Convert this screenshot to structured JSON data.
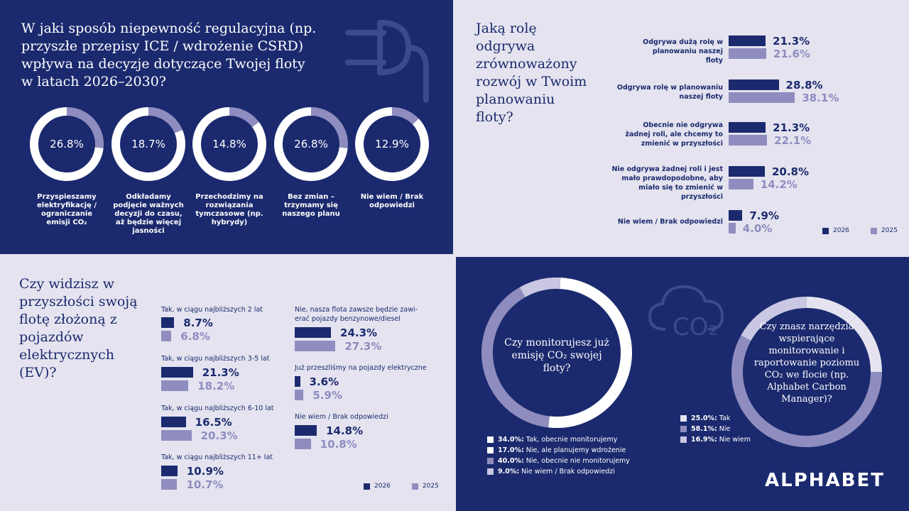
{
  "panel1": {
    "title": "W jaki sposób niepewność regulacyjna (np. przyszłe przepisy ICE / wdrożenie CSRD) wpływa na decyzje dotyczące Twojej floty w latach 2026–2030?",
    "icon": "plug-icon",
    "colors": {
      "ring": "#ffffff",
      "ring_rest": "#8f8dbf",
      "bg": "#1b2a6e"
    }
  },
  "panel2": {
    "title": "Jaką rolę odgrywa zrównoważony rozwój w Twoim planowaniu floty?",
    "legend": [
      "2026",
      "2025"
    ]
  },
  "panel3": {
    "title": "Czy widzisz w przyszłości swoją flotę złożoną z pojazdów elektrycznych (EV)?",
    "legend": [
      "2026",
      "2025"
    ]
  },
  "panel4": {
    "question_left": "Czy monitorujesz już emisję CO₂ swojej floty?",
    "question_right": "Czy znasz narzędzia wspierające monitorowanie i raportowanie poziomu CO₂ we flocie (np. Alphabet Carbon Manager)?",
    "icon": "cloud-co2-icon",
    "cloud_text": "CO₂",
    "logo": "ALPHABET"
  },
  "chart_data": [
    {
      "type": "pie",
      "subtype": "donut-small-multiples",
      "categories": [
        "Przyspieszamy elektryfikację / ograniczanie emisji CO₂",
        "Odkładamy podjęcie ważnych decyzji do czasu, aż będzie więcej jasności",
        "Przechodzimy na rozwiązania tymczasowe (np. hybrydy)",
        "Bez zmian – trzymamy się naszego planu",
        "Nie wiem / Brak odpowiedzi"
      ],
      "values": [
        26.8,
        18.7,
        14.8,
        26.8,
        12.9
      ],
      "labels": [
        "26.8%",
        "18.7%",
        "14.8%",
        "26.8%",
        "12.9%"
      ]
    },
    {
      "type": "bar",
      "orientation": "horizontal",
      "categories": [
        "Odgrywa dużą rolę w planowaniu naszej floty",
        "Odgrywa rolę w planowaniu naszej floty",
        "Obecnie nie odgrywa żadnej roli, ale chcemy to zmienić w przyszłości",
        "Nie odgrywa żadnej roli i jest mało prawdopodobne, aby miało się to zmienić w przyszłości",
        "Nie wiem / Brak odpowiedzi"
      ],
      "series": [
        {
          "name": "2026",
          "values": [
            21.3,
            28.8,
            21.3,
            20.8,
            7.9
          ],
          "labels": [
            "21.3%",
            "28.8%",
            "21.3%",
            "20.8%",
            "7.9%"
          ],
          "color": "#1b2a6e"
        },
        {
          "name": "2025",
          "values": [
            21.6,
            38.1,
            22.1,
            14.2,
            4.0
          ],
          "labels": [
            "21.6%",
            "38.1%",
            "22.1%",
            "14.2%",
            "4.0%"
          ],
          "color": "#8f8dbf"
        }
      ],
      "legend": "bottom-right"
    },
    {
      "type": "bar",
      "orientation": "horizontal",
      "categories": [
        "Tak, w ciągu najbliższych 2 lat",
        "Tak, w ciągu najbliższych 3-5 lat",
        "Tak, w ciągu najbliższych 6-10 lat",
        "Tak, w ciągu najbliższych 11+ lat",
        "Nie, nasza flota zawsze będzie zawierać pojazdy benzynowe/diesel",
        "Już przeszliśmy na pojazdy elektryczne",
        "Nie wiem / Brak odpowiedzi"
      ],
      "categories_display": [
        "Tak, w ciągu najbliższych 2 lat",
        "Tak, w ciągu najbliższych 3-5 lat",
        "Tak, w ciągu najbliższych 6-10 lat",
        "Tak, w ciągu najbliższych 11+ lat",
        "Nie, nasza flota zawsze będzie zawi-\nerać pojazdy benzynowe/diesel",
        "Już przeszliśmy na pojazdy elektryczne",
        "Nie wiem / Brak odpowiedzi"
      ],
      "series": [
        {
          "name": "2026",
          "values": [
            8.7,
            21.3,
            16.5,
            10.9,
            24.3,
            3.6,
            14.8
          ],
          "labels": [
            "8.7%",
            "21.3%",
            "16.5%",
            "10.9%",
            "24.3%",
            "3.6%",
            "14.8%"
          ],
          "color": "#1b2a6e"
        },
        {
          "name": "2025",
          "values": [
            6.8,
            18.2,
            20.3,
            10.7,
            27.3,
            5.9,
            10.8
          ],
          "labels": [
            "6.8%",
            "18.2%",
            "20.3%",
            "10.7%",
            "27.3%",
            "5.9%",
            "10.8%"
          ],
          "color": "#8f8dbf"
        }
      ],
      "legend": "bottom-right"
    },
    {
      "type": "pie",
      "subtype": "donut",
      "categories": [
        "Tak, obecnie monitorujemy",
        "Nie, ale planujemy wdrożenie",
        "Nie, obecnie nie monitorujemy",
        "Nie wiem / Brak odpowiedzi"
      ],
      "values": [
        34.0,
        17.0,
        40.0,
        9.0
      ],
      "labels": [
        "34.0%",
        "17.0%",
        "40.0%",
        "9.0%"
      ],
      "colors": [
        "#ffffff",
        "#ffffff",
        "#8f8dbf",
        "#c9c7e2"
      ]
    },
    {
      "type": "pie",
      "subtype": "donut",
      "categories": [
        "Tak",
        "Nie",
        "Nie wiem"
      ],
      "values": [
        25.0,
        58.1,
        16.9
      ],
      "labels": [
        "25.0%",
        "58.1%",
        "16.9%"
      ],
      "colors": [
        "#e4e3ef",
        "#8f8dbf",
        "#c9c7e2"
      ]
    }
  ]
}
